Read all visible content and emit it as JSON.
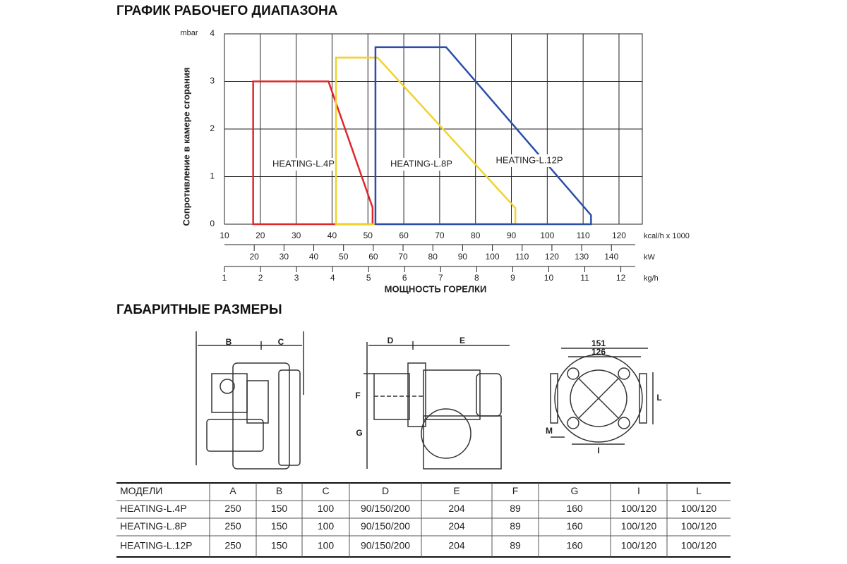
{
  "titles": {
    "chart": "ГРАФИК РАБОЧЕГО ДИАПАЗОНА",
    "dimensions": "ГАБАРИТНЫЕ РАЗМЕРЫ"
  },
  "chart_data": {
    "type": "line",
    "y_label": "Сопротивление в камере сгорания",
    "y_unit": "mbar",
    "x_unit": "kcal/h x 1000",
    "x_title": "МОЩНОСТЬ ГОРЕЛКИ",
    "xlim": [
      10,
      126.5
    ],
    "xticks": [
      10,
      20,
      30,
      40,
      50,
      60,
      70,
      80,
      90,
      100,
      110,
      120
    ],
    "ylim": [
      0,
      4
    ],
    "yticks": [
      0,
      1,
      2,
      3,
      4
    ],
    "grid": true,
    "kw_axis": {
      "unit": "kW",
      "xlim": [
        10,
        148
      ],
      "xticks": [
        20,
        30,
        40,
        50,
        60,
        70,
        80,
        90,
        100,
        110,
        120,
        130,
        140
      ]
    },
    "kgh_axis": {
      "unit": "kg/h",
      "xlim": [
        1,
        12.4
      ],
      "xticks": [
        1,
        2,
        3,
        4,
        5,
        6,
        7,
        8,
        9,
        10,
        11,
        12
      ]
    },
    "series": [
      {
        "name": "HEATING-L.4P",
        "color": "#e0262b",
        "x": [
          18,
          18,
          39,
          51.3,
          51.3
        ],
        "values": [
          0,
          3,
          3,
          0.35,
          0
        ]
      },
      {
        "name": "HEATING-L.8P",
        "color": "#f2d22c",
        "x": [
          41.1,
          41.1,
          52.7,
          91.1,
          91.1
        ],
        "values": [
          0,
          3.5,
          3.5,
          0.34,
          0
        ]
      },
      {
        "name": "HEATING-L.12P",
        "color": "#2b4fa8",
        "x": [
          52.1,
          52.1,
          71.8,
          112.2,
          112.2
        ],
        "values": [
          0,
          3.72,
          3.72,
          0.19,
          0
        ]
      }
    ]
  },
  "dimension_labels": [
    "B",
    "C",
    "D",
    "E",
    "F",
    "G",
    "151",
    "126",
    "M",
    "I",
    "L"
  ],
  "table": {
    "header": [
      "МОДЕЛИ",
      "A",
      "B",
      "C",
      "D",
      "E",
      "F",
      "G",
      "I",
      "L"
    ],
    "rows": [
      [
        "HEATING-L.4P",
        "250",
        "150",
        "100",
        "90/150/200",
        "204",
        "89",
        "160",
        "100/120",
        "100/120"
      ],
      [
        "HEATING-L.8P",
        "250",
        "150",
        "100",
        "90/150/200",
        "204",
        "89",
        "160",
        "100/120",
        "100/120"
      ],
      [
        "HEATING-L.12P",
        "250",
        "150",
        "100",
        "90/150/200",
        "204",
        "89",
        "160",
        "100/120",
        "100/120"
      ]
    ]
  }
}
